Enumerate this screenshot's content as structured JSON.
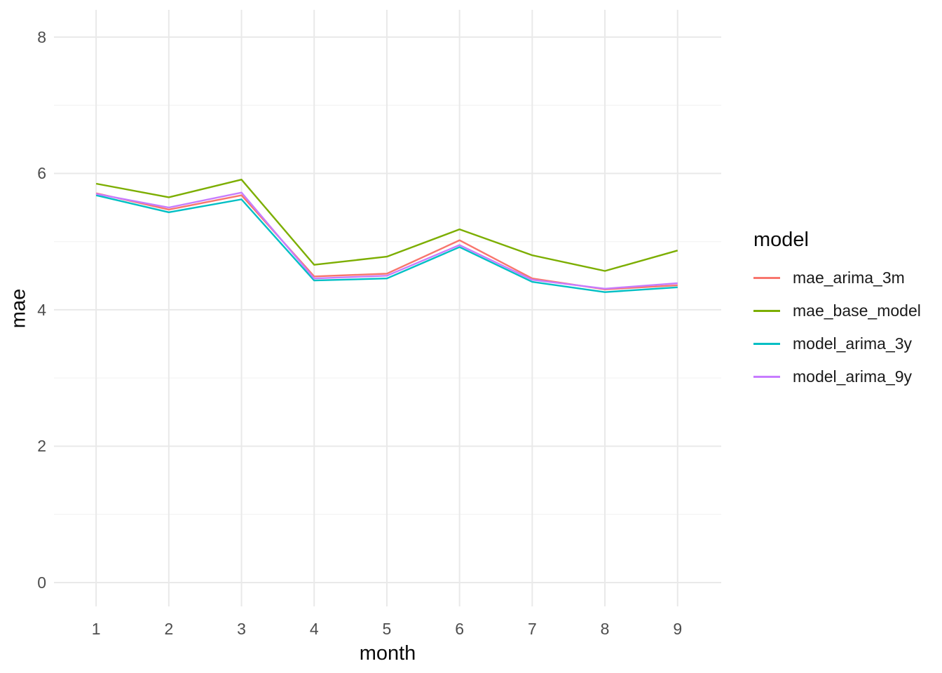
{
  "style": {
    "background": "#FFFFFF",
    "grid_major_color": "#E9E9E9",
    "grid_minor_color": "#F3F3F3",
    "tick_label_color": "#4D4D4D",
    "axis_title_color": "#0A0A0A",
    "legend_text_color": "#1A1A1A"
  },
  "chart_data": {
    "type": "line",
    "title": "",
    "xlabel": "month",
    "ylabel": "mae",
    "legend_title": "model",
    "legend_position": "right",
    "grid": true,
    "x": [
      1,
      2,
      3,
      4,
      5,
      6,
      7,
      8,
      9
    ],
    "x_ticks": [
      "1",
      "2",
      "3",
      "4",
      "5",
      "6",
      "7",
      "8",
      "9"
    ],
    "y_ticks": [
      "0",
      "2",
      "4",
      "6",
      "8"
    ],
    "y_tick_values": [
      0,
      2,
      4,
      6,
      8
    ],
    "y_minor_values": [
      1,
      3,
      5,
      7
    ],
    "xlim": [
      0.42,
      9.6
    ],
    "ylim": [
      -0.35,
      8.4
    ],
    "series": [
      {
        "name": "mae_arima_3m",
        "color": "#F8766D",
        "values": [
          5.71,
          5.47,
          5.68,
          4.49,
          4.53,
          5.02,
          4.46,
          4.3,
          4.36
        ]
      },
      {
        "name": "mae_base_model",
        "color": "#7CAE00",
        "values": [
          5.85,
          5.65,
          5.91,
          4.66,
          4.78,
          5.18,
          4.8,
          4.57,
          4.87
        ]
      },
      {
        "name": "model_arima_3y",
        "color": "#00BFC4",
        "values": [
          5.68,
          5.43,
          5.62,
          4.43,
          4.46,
          4.92,
          4.41,
          4.26,
          4.33
        ]
      },
      {
        "name": "model_arima_9y",
        "color": "#C77CFF",
        "values": [
          5.7,
          5.5,
          5.72,
          4.46,
          4.5,
          4.95,
          4.44,
          4.31,
          4.39
        ]
      }
    ]
  }
}
